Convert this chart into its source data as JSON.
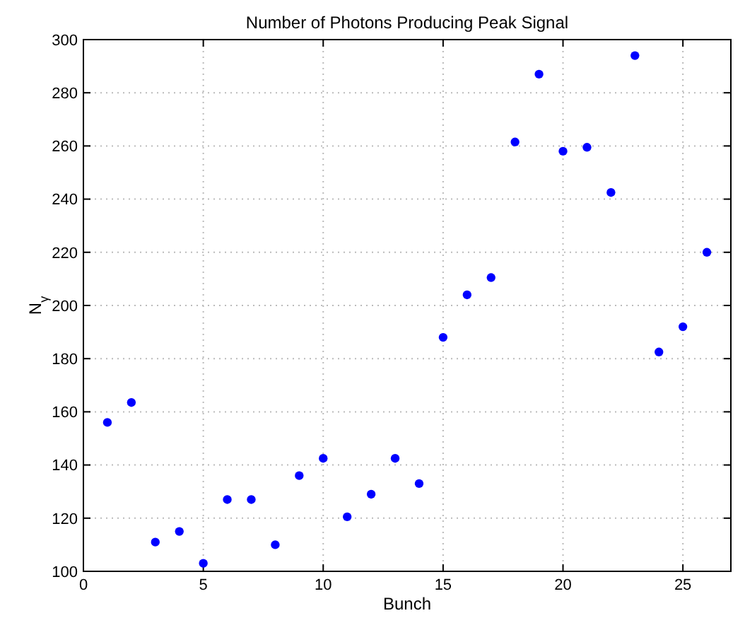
{
  "chart_data": {
    "type": "scatter",
    "title": "Number of Photons Producing Peak Signal",
    "xlabel": "Bunch",
    "ylabel": "N$_{γ}$",
    "x": [
      1,
      2,
      3,
      4,
      5,
      6,
      7,
      8,
      9,
      10,
      11,
      12,
      13,
      14,
      15,
      16,
      17,
      18,
      19,
      20,
      21,
      22,
      23,
      24,
      25,
      26
    ],
    "series": [
      {
        "color": "#0000ff",
        "values": [
          156,
          163.5,
          111,
          115,
          103,
          127,
          127,
          110,
          136,
          142.5,
          120.5,
          129,
          142.5,
          133,
          188,
          204,
          210.5,
          261.5,
          287,
          258,
          259.5,
          242.5,
          294,
          182.5,
          192,
          220
        ]
      }
    ],
    "xlim": [
      0,
      27
    ],
    "xticks": [
      0,
      5,
      10,
      15,
      20,
      25
    ],
    "ylim": [
      100,
      300
    ],
    "yticks": [
      100,
      120,
      140,
      160,
      180,
      200,
      220,
      240,
      260,
      280,
      300
    ],
    "grid": true,
    "marker": "circle"
  }
}
